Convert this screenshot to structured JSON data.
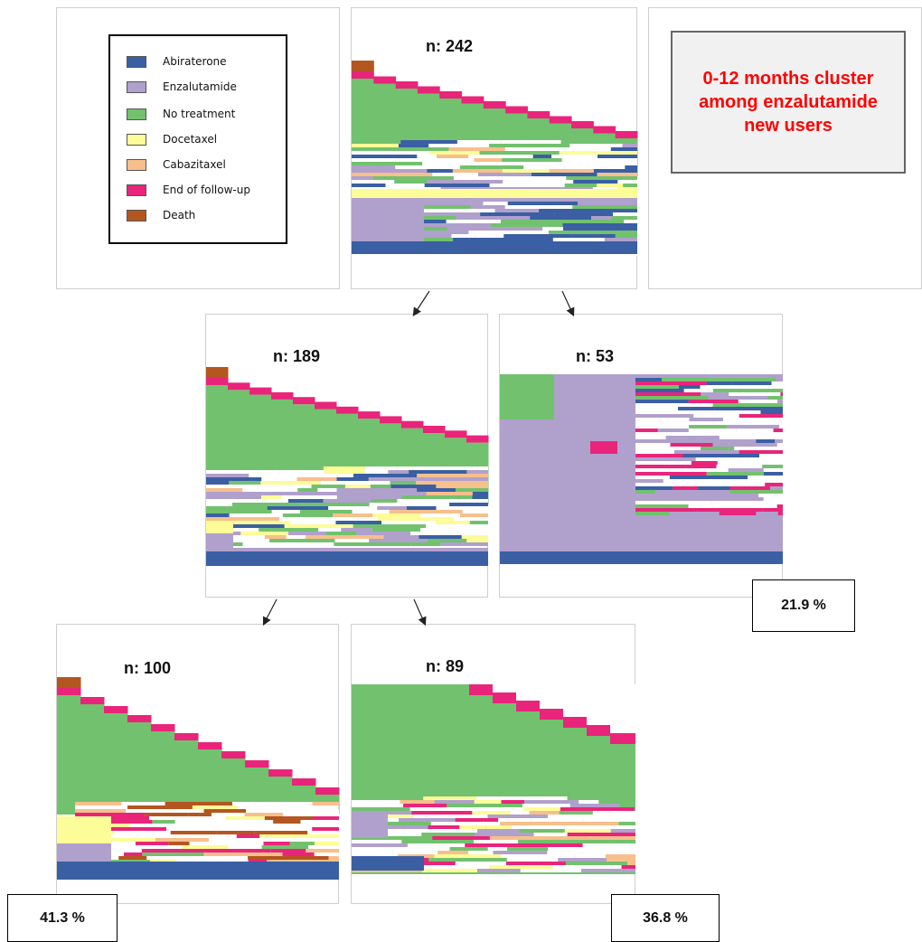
{
  "legend": {
    "items": [
      {
        "label": "Abiraterone",
        "color": "#3a5fa3"
      },
      {
        "label": "Enzalutamide",
        "color": "#b0a0cc"
      },
      {
        "label": "No treatment",
        "color": "#72c16e"
      },
      {
        "label": "Docetaxel",
        "color": "#fcfc98"
      },
      {
        "label": "Cabazitaxel",
        "color": "#f7bf8c"
      },
      {
        "label": "End of follow-up",
        "color": "#e8257a"
      },
      {
        "label": "Death",
        "color": "#b45620"
      }
    ]
  },
  "title": "0-12 months cluster among enzalutamide new users",
  "clusters": {
    "root": {
      "n_label": "n: 242"
    },
    "left": {
      "n_label": "n: 189"
    },
    "right": {
      "n_label": "n: 53",
      "percent": "21.9 %"
    },
    "left_left": {
      "n_label": "n: 100",
      "percent": "41.3 %"
    },
    "left_right": {
      "n_label": "n: 89",
      "percent": "36.8 %"
    }
  }
}
